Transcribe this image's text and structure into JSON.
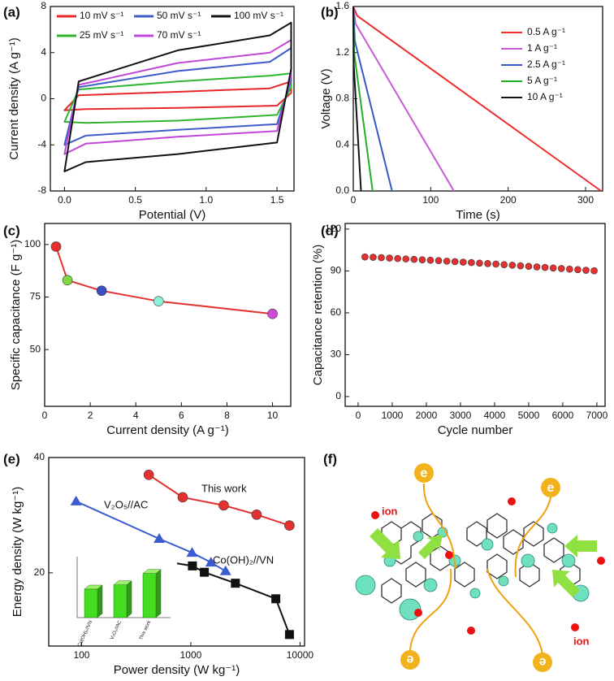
{
  "chart_data": [
    {
      "type": "line",
      "label": "(a)",
      "x_label": "Potential (V)",
      "y_label": "Current density (A g⁻¹)",
      "x": [
        0,
        0.1,
        0.8,
        1.45,
        1.6,
        1.6,
        1.5,
        0.8,
        0.15,
        0
      ],
      "closed": true,
      "legend": "top",
      "series": [
        {
          "name": "10 mV s⁻¹",
          "color": "#e8262a",
          "values": [
            -1.0,
            0.3,
            0.6,
            0.9,
            1.5,
            0.5,
            -0.6,
            -0.8,
            -0.9,
            -1.0
          ]
        },
        {
          "name": "25 mV s⁻¹",
          "color": "#2db52d",
          "values": [
            -2.0,
            0.8,
            1.5,
            2.0,
            2.2,
            1.0,
            -1.4,
            -1.9,
            -2.1,
            -2.0
          ]
        },
        {
          "name": "50 mV s⁻¹",
          "color": "#3d5cc8",
          "values": [
            -4.0,
            1.0,
            2.4,
            3.2,
            4.4,
            1.6,
            -2.2,
            -2.7,
            -3.2,
            -4.0
          ]
        },
        {
          "name": "70 mV s⁻¹",
          "color": "#c046d8",
          "values": [
            -4.8,
            1.2,
            3.1,
            4.0,
            5.1,
            2.0,
            -2.8,
            -3.3,
            -3.9,
            -4.8
          ]
        },
        {
          "name": "100 mV s⁻¹",
          "color": "#111111",
          "values": [
            -6.3,
            1.5,
            4.2,
            5.5,
            6.6,
            2.6,
            -3.8,
            -4.8,
            -5.5,
            -6.3
          ]
        }
      ],
      "xlim": [
        -0.1,
        1.62
      ],
      "xticks": [
        {
          "value": 0,
          "label": "0.0"
        },
        0.5,
        {
          "value": 1,
          "label": "1.0"
        },
        1.5
      ],
      "ylim": [
        -8,
        8
      ],
      "yticks": [
        -8,
        -4,
        0,
        4,
        8
      ]
    },
    {
      "type": "line",
      "label": "(b)",
      "x_label": "Time (s)",
      "y_label": "Voltage (V)",
      "legend": "top-right",
      "series": [
        {
          "name": "0.5 A g⁻¹",
          "color": "#ee2c2c",
          "x": [
            0,
            5,
            320
          ],
          "values": [
            1.6,
            1.52,
            0
          ]
        },
        {
          "name": "1 A g⁻¹",
          "color": "#c85ad8",
          "x": [
            0,
            3,
            130
          ],
          "values": [
            1.6,
            1.45,
            0
          ]
        },
        {
          "name": "2.5  A g⁻¹",
          "color": "#3558c8",
          "x": [
            0,
            2,
            50
          ],
          "values": [
            1.6,
            1.3,
            0
          ]
        },
        {
          "name": "5  A g⁻¹",
          "color": "#22b022",
          "x": [
            0,
            1,
            25
          ],
          "values": [
            1.6,
            1.2,
            0
          ]
        },
        {
          "name": "10  A g⁻¹",
          "color": "#111111",
          "x": [
            0,
            0.5,
            10
          ],
          "values": [
            1.6,
            1.1,
            0
          ]
        }
      ],
      "xlim": [
        0,
        322
      ],
      "xticks": [
        0,
        100,
        200,
        300
      ],
      "ylim": [
        0,
        1.6
      ],
      "yticks": [
        {
          "value": 0,
          "label": "0.0"
        },
        0.4,
        0.8,
        1.2,
        1.6
      ]
    },
    {
      "type": "line",
      "label": "(c)",
      "x_label": "Current density (A g⁻¹)",
      "y_label": "Specific capacitance (F g⁻¹)",
      "series": [
        {
          "color": "#e53030",
          "marker": "circle",
          "x": [
            0.5,
            1,
            2.5,
            5,
            10
          ],
          "values": [
            99,
            83,
            78,
            73,
            67
          ],
          "colors": [
            "#e53030",
            "#7fd640",
            "#3b4fc0",
            "#8ff0d8",
            "#d04ad8"
          ]
        }
      ],
      "xlim": [
        0,
        10.8
      ],
      "xticks": [
        0,
        2,
        4,
        6,
        8,
        10
      ],
      "ylim": [
        23,
        110
      ],
      "yticks": [
        50,
        75,
        100
      ]
    },
    {
      "type": "scatter",
      "label": "(d)",
      "x_label": "Cycle number",
      "y_label": "Capacitance retention (%)",
      "series": [
        {
          "color": "#e53030",
          "marker": "circle",
          "x": [
            200,
            440,
            680,
            920,
            1160,
            1400,
            1640,
            1880,
            2120,
            2360,
            2600,
            2840,
            3080,
            3320,
            3560,
            3800,
            4040,
            4280,
            4520,
            4760,
            5000,
            5240,
            5480,
            5720,
            5960,
            6200,
            6440,
            6680,
            6920
          ],
          "values": [
            100,
            99.8,
            99.5,
            99.2,
            98.9,
            98.6,
            98.3,
            98.0,
            97.7,
            97.4,
            97.0,
            96.7,
            96.3,
            96.0,
            95.6,
            95.3,
            94.9,
            94.5,
            94.1,
            93.7,
            93.3,
            92.9,
            92.5,
            92.1,
            91.7,
            91.3,
            90.9,
            90.5,
            90.1
          ]
        }
      ],
      "xlim": [
        -380,
        7240
      ],
      "xticks": [
        0,
        1000,
        2000,
        3000,
        4000,
        5000,
        6000,
        7000
      ],
      "ylim": [
        -7,
        124
      ],
      "yticks": [
        0,
        30,
        60,
        90,
        120
      ]
    },
    {
      "type": "line",
      "label": "(e)",
      "x_label": "Power density (W kg⁻¹)",
      "y_label": "Energy density (W kg⁻¹)",
      "xlog": true,
      "legend": "inline",
      "series": [
        {
          "name": "This work",
          "color": "#e53030",
          "marker": "circle",
          "x": [
            412,
            843,
            2000,
            4000,
            8000
          ],
          "values": [
            37.0,
            33.1,
            31.7,
            30.1,
            28.2
          ]
        },
        {
          "name": "V₂O₅//AC",
          "color": "#3a5cd0",
          "marker": "triangle",
          "x": [
            89,
            514,
            1026,
            1530,
            2080
          ],
          "values": [
            32.4,
            25.9,
            23.5,
            21.8,
            20.3
          ]
        },
        {
          "name": "Co(OH)₂//VN",
          "color": "#111111",
          "marker": "square",
          "x": [
            264,
            662,
            1034,
            1330,
            2560,
            6000,
            8000
          ],
          "values": [
            22.4,
            21.8,
            21.2,
            20.1,
            18.2,
            15.5,
            9.3
          ]
        }
      ],
      "xlim": [
        50,
        11000
      ],
      "xticks": [
        100,
        1000,
        10000
      ],
      "ylim": [
        7.3,
        40
      ],
      "yticks": [
        20,
        40
      ]
    },
    {
      "type": "bar",
      "categories": [
        "Co(OH)₂//VN",
        "V₂O₅//AC",
        "This work"
      ],
      "values": [
        40,
        46,
        62
      ],
      "ylim": [
        0,
        80
      ],
      "color": "#44dd22"
    }
  ],
  "diagram": {
    "label": "(f)",
    "electrons": [
      "e",
      "e",
      "e",
      "e"
    ],
    "ions": [
      "ion",
      "ion"
    ]
  }
}
